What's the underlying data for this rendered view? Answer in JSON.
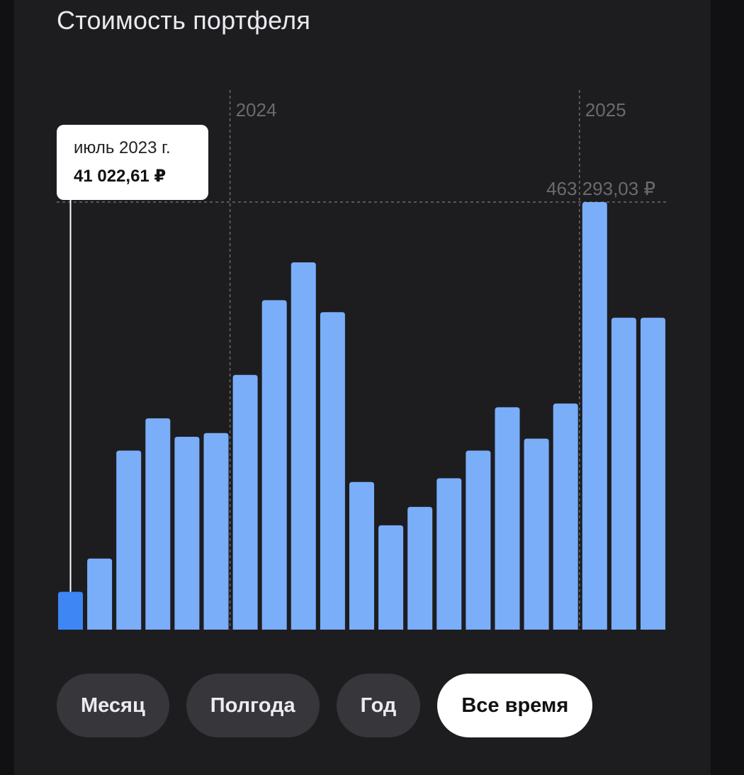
{
  "title": "Стоимость портфеля",
  "tooltip": {
    "date": "июль 2023 г.",
    "value": "41 022,61 ₽"
  },
  "max_label": "463 293,03 ₽",
  "colors": {
    "bar": "#7aaef9",
    "bar_selected": "#3d86f3",
    "background": "#1d1d20",
    "guide": "#6b6b70"
  },
  "periods": [
    {
      "label": "Месяц",
      "active": false
    },
    {
      "label": "Полгода",
      "active": false
    },
    {
      "label": "Год",
      "active": false
    },
    {
      "label": "Все время",
      "active": true
    }
  ],
  "chart_data": {
    "type": "bar",
    "categories": [
      "2023-07",
      "2023-08",
      "2023-09",
      "2023-10",
      "2023-11",
      "2023-12",
      "2024-01",
      "2024-02",
      "2024-03",
      "2024-04",
      "2024-05",
      "2024-06",
      "2024-07",
      "2024-08",
      "2024-09",
      "2024-10",
      "2024-11",
      "2024-12",
      "2025-01",
      "2025-02",
      "2025-03"
    ],
    "values": [
      41022.61,
      77000,
      194000,
      229000,
      209000,
      213000,
      276000,
      357000,
      398000,
      344000,
      160000,
      113000,
      133000,
      164000,
      194000,
      241000,
      207000,
      245000,
      463293.03,
      338000,
      338000
    ],
    "year_markers": [
      {
        "label": "2024",
        "category": "2024-01"
      },
      {
        "label": "2025",
        "category": "2025-01"
      }
    ],
    "max_value": 463293.03,
    "selected_index": 0,
    "ylim": [
      0,
      463293.03
    ]
  }
}
